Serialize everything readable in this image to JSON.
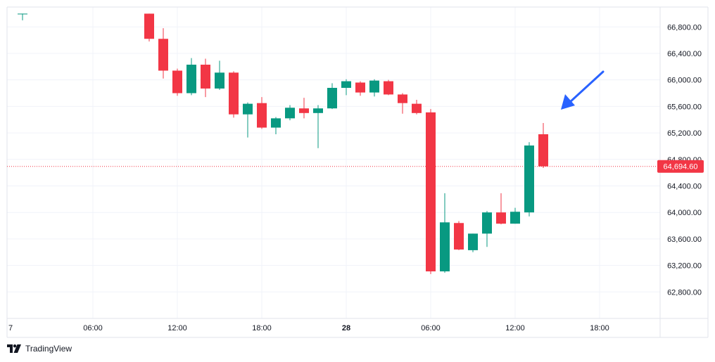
{
  "chart_data": {
    "type": "candlestick",
    "brand": "TradingView",
    "colors": {
      "up": "#089981",
      "down": "#f23645",
      "grid": "#f0f3fa",
      "axis_text": "#131722",
      "current_price_line": "#f23645",
      "arrow": "#2962ff"
    },
    "x_tick_labels": [
      "7",
      "06:00",
      "12:00",
      "18:00",
      "28",
      "06:00",
      "12:00",
      "18:00"
    ],
    "x_tick_hours": [
      0,
      6,
      12,
      18,
      24,
      30,
      36,
      42
    ],
    "x_tick_bold": [
      false,
      false,
      false,
      false,
      true,
      false,
      false,
      false
    ],
    "x_range_hours": [
      -0.1,
      46.3
    ],
    "y_tick_values": [
      62800,
      63200,
      63600,
      64000,
      64400,
      64800,
      65200,
      65600,
      66000,
      66400,
      66800
    ],
    "y_tick_labels": [
      "62,800.00",
      "63,200.00",
      "63,600.00",
      "64,000.00",
      "64,400.00",
      "64,800.00",
      "65,200.00",
      "65,600.00",
      "66,000.00",
      "66,400.00",
      "66,800.00"
    ],
    "ylim": [
      62400,
      67100
    ],
    "current_price": 64694.6,
    "current_price_label": "64,694.60",
    "candles": [
      {
        "t": 1,
        "o": 67000,
        "h": 67000,
        "l": 66900,
        "c": 67000
      },
      {
        "t": 10,
        "o": 67000,
        "h": 67000,
        "l": 66580,
        "c": 66620
      },
      {
        "t": 11,
        "o": 66620,
        "h": 66780,
        "l": 66020,
        "c": 66140
      },
      {
        "t": 12,
        "o": 66140,
        "h": 66170,
        "l": 65760,
        "c": 65800
      },
      {
        "t": 13,
        "o": 65800,
        "h": 66330,
        "l": 65770,
        "c": 66230
      },
      {
        "t": 14,
        "o": 66230,
        "h": 66320,
        "l": 65740,
        "c": 65870
      },
      {
        "t": 15,
        "o": 65870,
        "h": 66290,
        "l": 65850,
        "c": 66110
      },
      {
        "t": 16,
        "o": 66110,
        "h": 66130,
        "l": 65430,
        "c": 65480
      },
      {
        "t": 17,
        "o": 65480,
        "h": 65660,
        "l": 65130,
        "c": 65640
      },
      {
        "t": 18,
        "o": 65650,
        "h": 65740,
        "l": 65260,
        "c": 65280
      },
      {
        "t": 19,
        "o": 65280,
        "h": 65440,
        "l": 65180,
        "c": 65420
      },
      {
        "t": 20,
        "o": 65420,
        "h": 65620,
        "l": 65390,
        "c": 65580
      },
      {
        "t": 21,
        "o": 65570,
        "h": 65730,
        "l": 65420,
        "c": 65500
      },
      {
        "t": 22,
        "o": 65500,
        "h": 65620,
        "l": 64970,
        "c": 65570
      },
      {
        "t": 23,
        "o": 65570,
        "h": 65950,
        "l": 65560,
        "c": 65880
      },
      {
        "t": 24,
        "o": 65880,
        "h": 66010,
        "l": 65770,
        "c": 65980
      },
      {
        "t": 25,
        "o": 65960,
        "h": 65980,
        "l": 65760,
        "c": 65810
      },
      {
        "t": 26,
        "o": 65810,
        "h": 66010,
        "l": 65750,
        "c": 65990
      },
      {
        "t": 27,
        "o": 65980,
        "h": 66000,
        "l": 65770,
        "c": 65780
      },
      {
        "t": 28,
        "o": 65780,
        "h": 65800,
        "l": 65490,
        "c": 65650
      },
      {
        "t": 29,
        "o": 65640,
        "h": 65700,
        "l": 65480,
        "c": 65500
      },
      {
        "t": 30,
        "o": 65510,
        "h": 65560,
        "l": 63070,
        "c": 63110
      },
      {
        "t": 31,
        "o": 63110,
        "h": 64290,
        "l": 63090,
        "c": 63850
      },
      {
        "t": 32,
        "o": 63840,
        "h": 63870,
        "l": 63430,
        "c": 63440
      },
      {
        "t": 33,
        "o": 63430,
        "h": 63680,
        "l": 63400,
        "c": 63680
      },
      {
        "t": 34,
        "o": 63680,
        "h": 64020,
        "l": 63480,
        "c": 64000
      },
      {
        "t": 35,
        "o": 64000,
        "h": 64290,
        "l": 63820,
        "c": 63830
      },
      {
        "t": 36,
        "o": 63830,
        "h": 64070,
        "l": 63830,
        "c": 64010
      },
      {
        "t": 37,
        "o": 64000,
        "h": 65060,
        "l": 63940,
        "c": 65010
      },
      {
        "t": 38,
        "o": 65180,
        "h": 65350,
        "l": 64670,
        "c": 64695
      }
    ]
  }
}
